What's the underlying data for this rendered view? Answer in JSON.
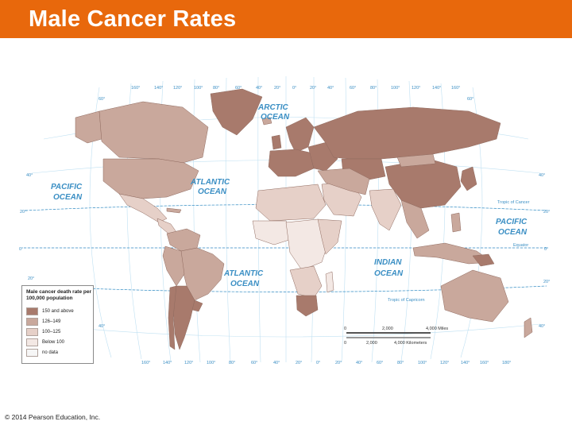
{
  "header": {
    "title": "Male Cancer Rates"
  },
  "colors": {
    "header": "#e8680c",
    "ocean_line": "#3b8fc4",
    "cat_150_above": "#a87a6c",
    "cat_126_149": "#c9a89c",
    "cat_100_125": "#e6d0c8",
    "cat_below_100": "#f3e8e4",
    "cat_no_data": "#f6f6f6"
  },
  "oceans": {
    "arctic_1": "ARCTIC",
    "arctic_2": "OCEAN",
    "pacific_w_1": "PACIFIC",
    "pacific_w_2": "OCEAN",
    "atlantic_n_1": "ATLANTIC",
    "atlantic_n_2": "OCEAN",
    "atlantic_s_1": "ATLANTIC",
    "atlantic_s_2": "OCEAN",
    "indian_1": "INDIAN",
    "indian_2": "OCEAN",
    "pacific_e_1": "PACIFIC",
    "pacific_e_2": "OCEAN"
  },
  "lines": {
    "tropic_cancer": "Tropic of Cancer",
    "equator": "Equator",
    "tropic_capricorn": "Tropic of Capricorn"
  },
  "graticule": {
    "top": [
      "160°",
      "140°",
      "120°",
      "100°",
      "80°",
      "60°",
      "40°",
      "20°",
      "0°",
      "20°",
      "40°",
      "60°",
      "80°",
      "100°",
      "120°",
      "140°",
      "160°"
    ],
    "bottom": [
      "160°",
      "140°",
      "120°",
      "100°",
      "80°",
      "60°",
      "40°",
      "20°",
      "0°",
      "20°",
      "40°",
      "60°",
      "80°",
      "100°",
      "120°",
      "140°",
      "160°",
      "180°"
    ],
    "left": [
      "60°",
      "40°",
      "20°",
      "0°",
      "20°",
      "40°"
    ],
    "right": [
      "60°",
      "40°",
      "20°",
      "0°",
      "20°",
      "40°"
    ]
  },
  "scale": {
    "zero_a": "0",
    "mid_a": "2,000",
    "end_a": "4,000 Miles",
    "zero_b": "0",
    "mid_b": "2,000",
    "end_b": "4,000 Kilometers"
  },
  "legend": {
    "title": "Male cancer death rate per 100,000 population",
    "items": [
      {
        "label": "150 and above"
      },
      {
        "label": "126–149"
      },
      {
        "label": "100–125"
      },
      {
        "label": "Below 100"
      },
      {
        "label": "no data"
      }
    ]
  },
  "footer": {
    "copyright": "© 2014 Pearson Education, Inc."
  }
}
